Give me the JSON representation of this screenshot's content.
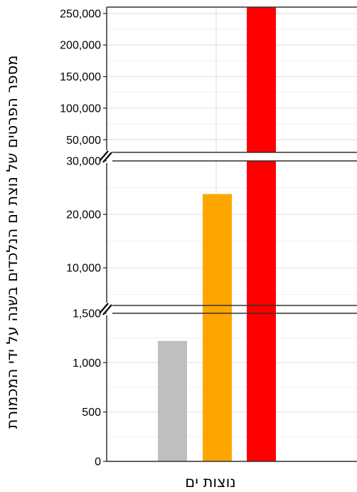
{
  "chart_data": {
    "type": "bar",
    "xlabel": "נוצות ים",
    "ylabel": "מספר הפרטים של נוצת ים הנלכדים בשנה על ידי המכמורת",
    "axis_breaks": true,
    "grid": true,
    "colors": [
      "#bfbfbf",
      "#ffa500",
      "#ff0000"
    ],
    "series": [
      {
        "values": [
          1220
        ]
      },
      {
        "values": [
          23800
        ]
      },
      {
        "values": [
          260000
        ]
      }
    ],
    "panels": [
      {
        "ylim": [
          0,
          1500
        ],
        "ticks": [
          "0",
          "500",
          "1,000",
          "1,500"
        ]
      },
      {
        "ylim": [
          1500,
          30000
        ],
        "ticks": [
          "10,000",
          "20,000",
          "30,000"
        ]
      },
      {
        "ylim": [
          30000,
          260000
        ],
        "ticks": [
          "50,000",
          "100,000",
          "150,000",
          "200,000",
          "250,000"
        ]
      }
    ]
  }
}
